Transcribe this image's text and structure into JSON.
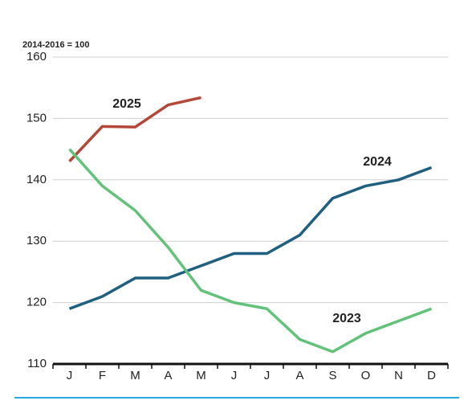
{
  "chart_data": {
    "type": "line",
    "axis_note": "2014-2016 = 100",
    "categories": [
      "J",
      "F",
      "M",
      "A",
      "M",
      "J",
      "J",
      "A",
      "S",
      "O",
      "N",
      "D"
    ],
    "series": [
      {
        "name": "2025",
        "color": "#b5473a",
        "values": [
          143,
          148.7,
          148.6,
          152.2,
          153.4,
          null,
          null,
          null,
          null,
          null,
          null,
          null
        ]
      },
      {
        "name": "2024",
        "color": "#1f5f7f",
        "values": [
          119,
          121,
          124,
          124,
          126,
          128,
          128,
          131,
          137,
          139,
          140,
          142
        ]
      },
      {
        "name": "2023",
        "color": "#62c27a",
        "values": [
          145,
          139,
          135,
          129,
          122,
          120,
          119,
          114,
          112,
          115,
          117,
          119
        ]
      }
    ],
    "ylim": [
      110,
      160
    ],
    "yticks": [
      110,
      120,
      130,
      140,
      150,
      160
    ],
    "grid": true
  }
}
